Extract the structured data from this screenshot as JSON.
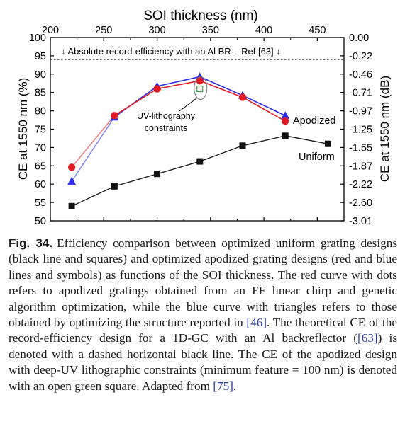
{
  "chart_data": {
    "type": "line",
    "top_axis_label": "SOI thickness (nm)",
    "ylabel_left": "CE at 1550 nm (%)",
    "ylabel_right": "CE at 1550 nm (dB)",
    "xlim": [
      200,
      475
    ],
    "ylim": [
      50,
      100
    ],
    "x_ticks": [
      "200",
      "250",
      "300",
      "350",
      "400",
      "450"
    ],
    "y_left_ticks": [
      "50",
      "55",
      "60",
      "65",
      "70",
      "75",
      "80",
      "85",
      "90",
      "95",
      "100"
    ],
    "y_right_ticks": [
      "0.00",
      "-0.22",
      "-0.46",
      "-0.71",
      "-0.97",
      "-1.25",
      "-1.55",
      "-1.87",
      "-2.22",
      "-2.60",
      "-3.01"
    ],
    "reference_line": {
      "value": 94,
      "label": "↓ Absolute record-efficiency with an Al BR – Ref [63] ↓"
    },
    "series": [
      {
        "name": "Uniform",
        "color": "#111111",
        "marker": "square",
        "x": [
          220,
          260,
          300,
          340,
          380,
          420,
          460
        ],
        "y": [
          54,
          59.4,
          62.8,
          66.2,
          70.5,
          73.2,
          71
        ]
      },
      {
        "name": "Apodized",
        "color": "#e01b24",
        "marker": "circle",
        "x": [
          220,
          260,
          300,
          340,
          380,
          420
        ],
        "y": [
          64.6,
          78.7,
          86,
          88.2,
          83.7,
          77.2
        ]
      },
      {
        "name": "",
        "color": "#2a2ae8",
        "marker": "triangle",
        "x": [
          220,
          260,
          300,
          340,
          380,
          420
        ],
        "y": [
          60.8,
          78.3,
          86.7,
          89.3,
          84.2,
          78.7
        ]
      }
    ],
    "lithography_point": {
      "x": 340,
      "y": 86,
      "color": "#3a9a3a"
    },
    "annotations": {
      "uv_line1": "UV-lithography",
      "uv_line2": "constraints",
      "apodized": "Apodized",
      "uniform": "Uniform"
    }
  },
  "caption": {
    "label": "Fig. 34.",
    "seg1": "Efficiency comparison between optimized uniform grating designs (black line and squares) and optimized apodized grating designs (red and blue lines and symbols) as functions of the SOI thickness. The red curve with dots refers to apodized gratings obtained from an FF linear chirp and genetic algorithm optimization, while the blue curve with triangles refers to those obtained by optimizing the structure reported in ",
    "ref1": "[46]",
    "seg2": ". The theoretical CE of the record-efficiency design for a 1D-GC with an Al backreflector (",
    "ref2": "[63]",
    "seg3": ") is denoted with a dashed horizontal black line. The CE of the apodized design with deep-UV lithographic constraints (minimum feature = 100 nm) is denoted with an open green square. Adapted from ",
    "ref3": "[75]",
    "seg4": "."
  }
}
